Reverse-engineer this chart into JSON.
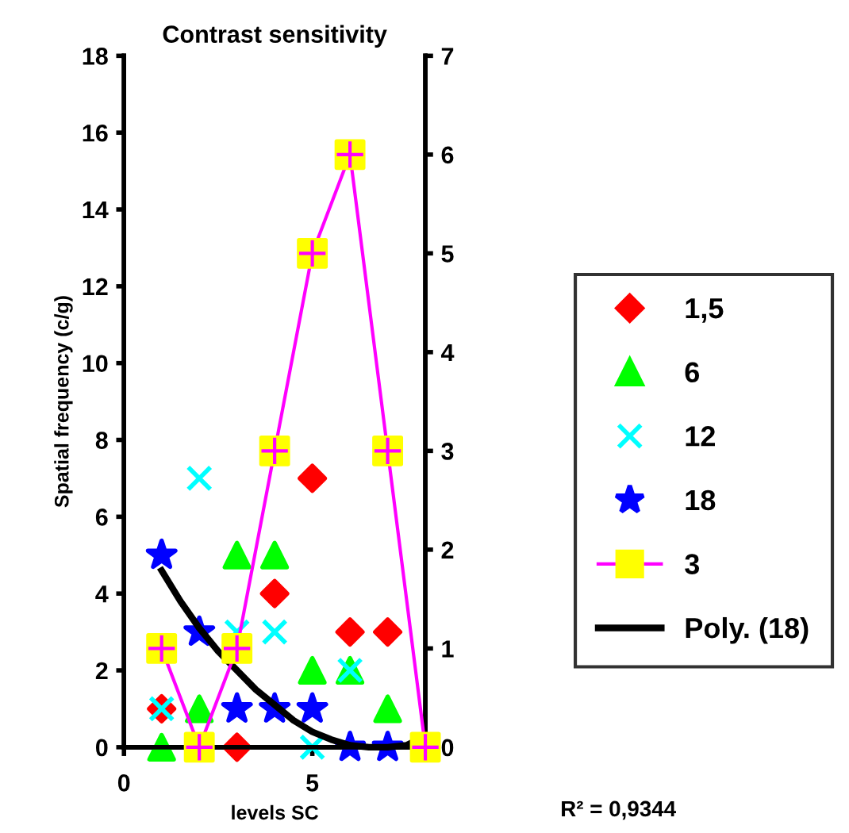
{
  "chart_data": {
    "type": "scatter",
    "title": "Contrast sensitivity",
    "xlabel": "levels SC",
    "ylabel": "Spatial frequency (c/g)",
    "x": [
      1,
      2,
      3,
      4,
      5,
      6,
      7,
      8
    ],
    "xlim": [
      0,
      8
    ],
    "xticks": [
      0,
      5
    ],
    "ylim": [
      0,
      18
    ],
    "yticks": [
      0,
      2,
      4,
      6,
      8,
      10,
      12,
      14,
      16,
      18
    ],
    "y2lim": [
      0,
      7
    ],
    "y2ticks": [
      0,
      1,
      2,
      3,
      4,
      5,
      6,
      7
    ],
    "series": [
      {
        "name": "1,5",
        "color": "#ff0000",
        "marker": "diamond",
        "values": [
          1,
          null,
          0,
          4,
          7,
          3,
          3,
          null
        ]
      },
      {
        "name": "6",
        "color": "#00ff00",
        "marker": "triangle",
        "values": [
          0,
          1,
          5,
          5,
          2,
          2,
          1,
          null
        ]
      },
      {
        "name": "12",
        "color": "#00ffff",
        "marker": "cross",
        "values": [
          1,
          7,
          3,
          3,
          0,
          2,
          null,
          null
        ]
      },
      {
        "name": "18",
        "color": "#0000ff",
        "marker": "star",
        "values": [
          5,
          3,
          1,
          1,
          1,
          0,
          0,
          null
        ]
      },
      {
        "name": "3",
        "type": "line",
        "axis": "y2",
        "color": "#ff00ff",
        "marker": "square",
        "colors": [
          "#ffff00",
          "#ffff00",
          "#ffff00",
          "#ffff00",
          "#ffff00",
          "#ffff00",
          "#ffff00",
          "#ffff00"
        ],
        "values": [
          1,
          0,
          1,
          3,
          5,
          6,
          3,
          0
        ]
      },
      {
        "name": "Poly. (18)",
        "type": "line",
        "color": "#000000",
        "marker": "none",
        "x": [
          1,
          1.5,
          2,
          2.5,
          3,
          3.5,
          4,
          4.5,
          5,
          5.5,
          6,
          6.5,
          7,
          7.5,
          7.6
        ],
        "values": [
          4.6,
          3.8,
          3.1,
          2.5,
          2.0,
          1.5,
          1.1,
          0.7,
          0.4,
          0.2,
          0.05,
          0,
          0,
          0.05,
          0.1
        ]
      }
    ],
    "annotations": [
      "R² = 0,9344"
    ],
    "grid": false,
    "legend": "right"
  }
}
